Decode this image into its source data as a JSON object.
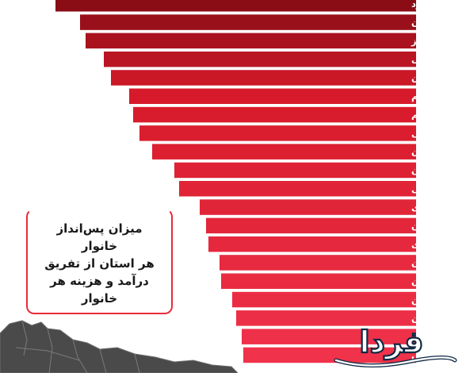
{
  "chart_data": {
    "type": "bar",
    "orientation": "horizontal",
    "categories": [
      "یزد",
      "گیلان",
      "البرز",
      "خراسان جنوبی",
      "کرمان",
      "ایلام",
      "قم",
      "آذربایجان شرقی",
      "لرستان",
      "سیستان و بلوچستان",
      "خراسان شمالی",
      "چهارمحال و بختیاری",
      "سمنان",
      "مرکزی",
      "هرمزگان",
      "تهران",
      "قزوین",
      "گلستان",
      "همدان",
      "فارس"
    ],
    "values": [
      455,
      424,
      417,
      394,
      385,
      362,
      357,
      349,
      333,
      305,
      299,
      273,
      265,
      262,
      248,
      246,
      232,
      227,
      220,
      218
    ],
    "colors": {
      "top": "#8a0d16",
      "mid": "#d61a2a",
      "bottom": "#f0324a",
      "label": "#ffffff"
    }
  },
  "callout": {
    "lines": [
      "میزان پس‌انداز خانوار",
      "هر استان از تفریق",
      "درآمد و هزینه هر خانوار"
    ],
    "border_color": "#ea2a3a"
  },
  "watermark": {
    "text": "فردا",
    "logo": "farda-logo",
    "fill_color": "#ffffff",
    "stroke_color": "#0f2a45"
  },
  "map": {
    "icon": "iran-map-icon",
    "color": "#4a4a4a"
  }
}
